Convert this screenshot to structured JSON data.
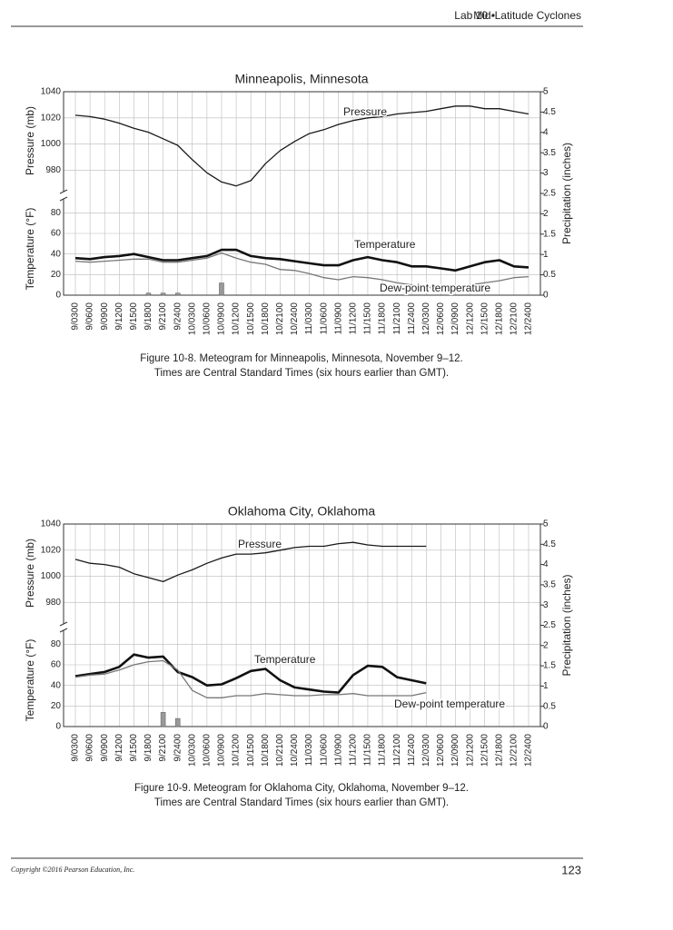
{
  "header": {
    "lab": "Lab 10",
    "separator": "•",
    "title": "Mid-Latitude Cyclones"
  },
  "footer": {
    "copyright": "Copyright ©2016 Pearson Education, Inc.",
    "page_number": "123"
  },
  "chart_data": [
    {
      "type": "line",
      "title": "Minneapolis, Minnesota",
      "caption": [
        "Figure 10-8. Meteogram for Minneapolis, Minnesota, November 9–12.",
        "Times are Central Standard Times (six hours earlier than GMT)."
      ],
      "categories": [
        "9/0300",
        "9/0600",
        "9/0900",
        "9/1200",
        "9/1500",
        "9/1800",
        "9/2100",
        "9/2400",
        "10/0300",
        "10/0600",
        "10/0900",
        "10/1200",
        "10/1500",
        "10/1800",
        "10/2100",
        "10/2400",
        "11/0300",
        "11/0600",
        "11/0900",
        "11/1200",
        "11/1500",
        "11/1800",
        "11/2100",
        "11/2400",
        "12/0300",
        "12/0600",
        "12/0900",
        "12/1200",
        "12/1500",
        "12/1800",
        "12/2100",
        "12/2400"
      ],
      "pressure_label": "Pressure (mb)",
      "temperature_label": "Temperature (°F)",
      "precipitation_label": "Precipitation (inches)",
      "pressure_ylim": [
        965,
        1040
      ],
      "pressure_yticks": [
        980,
        1000,
        1020,
        1040
      ],
      "temperature_ylim": [
        0,
        90
      ],
      "temperature_yticks": [
        0,
        20,
        40,
        60,
        80
      ],
      "y2lim": [
        0,
        5
      ],
      "y2ticks": [
        0,
        0.5,
        1,
        1.5,
        2,
        2.5,
        3,
        3.5,
        4,
        4.5,
        5
      ],
      "grid": true,
      "series": [
        {
          "name": "Pressure",
          "color": "#1a1a1a",
          "axis": "pressure",
          "values": [
            1022,
            1021,
            1019,
            1016,
            1012,
            1009,
            1004,
            999,
            988,
            978,
            971,
            968,
            972,
            985,
            995,
            1002,
            1008,
            1011,
            1015,
            1018,
            1020,
            1021,
            1023,
            1024,
            1025,
            1027,
            1029,
            1029,
            1027,
            1027,
            1025,
            1023
          ]
        },
        {
          "name": "Temperature",
          "color": "#111111",
          "axis": "temperature",
          "values": [
            36,
            35,
            37,
            38,
            40,
            37,
            34,
            34,
            36,
            38,
            44,
            44,
            38,
            36,
            35,
            33,
            31,
            29,
            29,
            34,
            37,
            34,
            32,
            28,
            28,
            26,
            24,
            28,
            32,
            34,
            28,
            27
          ]
        },
        {
          "name": "Dew-point temperature",
          "color": "#777777",
          "axis": "temperature",
          "values": [
            33,
            32,
            33,
            34,
            35,
            35,
            32,
            32,
            34,
            36,
            41,
            36,
            32,
            30,
            25,
            24,
            21,
            17,
            15,
            18,
            17,
            15,
            12,
            10,
            8,
            6,
            8,
            10,
            12,
            14,
            17,
            18
          ]
        },
        {
          "type": "bar",
          "color": "#999999",
          "axis": "y2",
          "values": [
            0,
            0,
            0,
            0,
            0,
            0.05,
            0.05,
            0.05,
            0,
            0,
            0.3,
            0,
            0,
            0,
            0,
            0,
            0,
            0,
            0,
            0,
            0,
            0,
            0,
            0,
            0,
            0,
            0,
            0,
            0,
            0,
            0,
            0
          ]
        }
      ]
    },
    {
      "type": "line",
      "title": "Oklahoma City, Oklahoma",
      "caption": [
        "Figure 10-9. Meteogram for Oklahoma City, Oklahoma, November 9–12.",
        "Times are Central Standard Times (six hours earlier than GMT)."
      ],
      "categories": [
        "9/0300",
        "9/0600",
        "9/0900",
        "9/1200",
        "9/1500",
        "9/1800",
        "9/2100",
        "9/2400",
        "10/0300",
        "10/0600",
        "10/0900",
        "10/1200",
        "10/1500",
        "10/1800",
        "10/2100",
        "10/2400",
        "11/0300",
        "11/0600",
        "11/0900",
        "11/1200",
        "11/1500",
        "11/1800",
        "11/2100",
        "11/2400",
        "12/0300",
        "12/0600",
        "12/0900",
        "12/1200",
        "12/1500",
        "12/1800",
        "12/2100",
        "12/2400"
      ],
      "pressure_label": "Pressure (mb)",
      "temperature_label": "Temperature (°F)",
      "precipitation_label": "Precipitation (inches)",
      "pressure_ylim": [
        965,
        1040
      ],
      "pressure_yticks": [
        980,
        1000,
        1020,
        1040
      ],
      "temperature_ylim": [
        0,
        90
      ],
      "temperature_yticks": [
        0,
        20,
        40,
        60,
        80
      ],
      "y2lim": [
        0,
        5
      ],
      "y2ticks": [
        0,
        0.5,
        1,
        1.5,
        2,
        2.5,
        3,
        3.5,
        4,
        4.5,
        5
      ],
      "grid": true,
      "series": [
        {
          "name": "Pressure",
          "color": "#1a1a1a",
          "axis": "pressure",
          "values": [
            1013,
            1010,
            1009,
            1007,
            1002,
            999,
            996,
            1001,
            1005,
            1010,
            1014,
            1017,
            1017,
            1018,
            1020,
            1022,
            1023,
            1023,
            1025,
            1026,
            1024,
            1023,
            1023,
            1023,
            1023,
            null,
            null,
            null,
            null,
            null,
            null,
            null
          ]
        },
        {
          "name": "Temperature",
          "color": "#111111",
          "axis": "temperature",
          "values": [
            49,
            51,
            53,
            58,
            70,
            67,
            68,
            53,
            48,
            40,
            41,
            47,
            54,
            56,
            45,
            38,
            36,
            34,
            33,
            50,
            59,
            58,
            48,
            45,
            42,
            null,
            null,
            null,
            null,
            null,
            null,
            null
          ]
        },
        {
          "name": "Dew-point temperature",
          "color": "#777777",
          "axis": "temperature",
          "values": [
            48,
            50,
            51,
            55,
            60,
            63,
            64,
            55,
            35,
            28,
            28,
            30,
            30,
            32,
            31,
            30,
            30,
            31,
            31,
            32,
            30,
            30,
            30,
            30,
            33,
            null,
            null,
            null,
            null,
            null,
            null,
            null
          ]
        },
        {
          "type": "bar",
          "color": "#999999",
          "axis": "y2",
          "values": [
            0,
            0,
            0,
            0,
            0,
            0,
            0.35,
            0.2,
            0,
            0,
            0,
            0,
            0,
            0,
            0,
            0,
            0,
            0,
            0,
            0,
            0,
            0,
            0,
            0,
            0,
            null,
            null,
            null,
            null,
            null,
            null,
            null
          ]
        }
      ]
    }
  ]
}
